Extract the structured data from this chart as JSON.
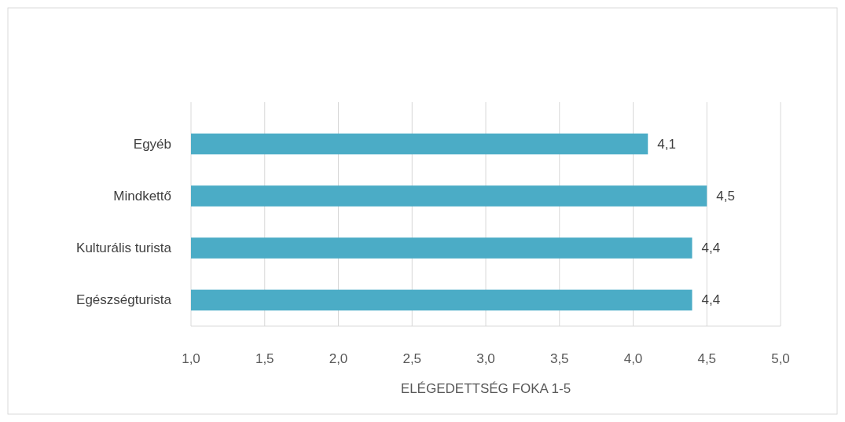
{
  "chart_data": {
    "type": "bar",
    "orientation": "horizontal",
    "xlabel": "ELÉGEDETTSÉG FOKA 1-5",
    "categories": [
      "Egyéb",
      "Mindkettő",
      "Kulturális turista",
      "Egészségturista"
    ],
    "values": [
      4.1,
      4.5,
      4.4,
      4.4
    ],
    "value_labels": [
      "4,1",
      "4,5",
      "4,4",
      "4,4"
    ],
    "color": "#4bacc6",
    "xlim": [
      1,
      5
    ],
    "xticks": [
      {
        "value": 1,
        "label": "1,0"
      },
      {
        "value": 1.5,
        "label": "1,5"
      },
      {
        "value": 2,
        "label": "2,0"
      },
      {
        "value": 2.5,
        "label": "2,5"
      },
      {
        "value": 3,
        "label": "3,0"
      },
      {
        "value": 3.5,
        "label": "3,5"
      },
      {
        "value": 4,
        "label": "4,0"
      },
      {
        "value": 4.5,
        "label": "4,5"
      },
      {
        "value": 5,
        "label": "5,0"
      }
    ],
    "grid": "x"
  }
}
